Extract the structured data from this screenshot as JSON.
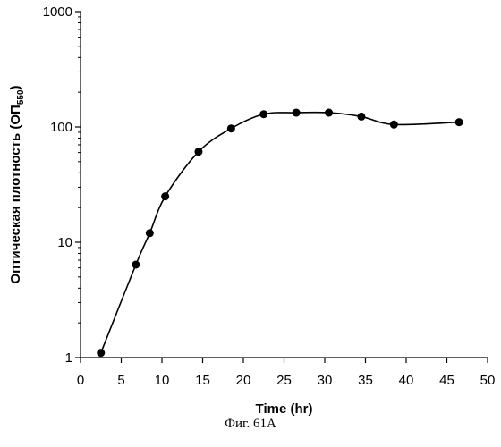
{
  "chart_data": {
    "type": "line",
    "xlabel": "Time (hr)",
    "ylabel": {
      "main": "Оптическая плотность (ОП",
      "sub": "550",
      "close": ")"
    },
    "y_scale": "log",
    "xlim": [
      0,
      50
    ],
    "ylim": [
      1,
      1000
    ],
    "x_ticks": [
      0,
      5,
      10,
      15,
      20,
      25,
      30,
      35,
      40,
      45,
      50
    ],
    "y_ticks": [
      1,
      10,
      100,
      1000
    ],
    "grid": false,
    "series": [
      {
        "x": [
          2.5,
          6.8,
          8.5,
          10.4,
          14.5,
          18.5,
          22.5,
          26.5,
          30.5,
          34.5,
          38.5,
          46.5
        ],
        "values": [
          1.1,
          6.4,
          12,
          25,
          61,
          97,
          129,
          133,
          133,
          123,
          105,
          110
        ]
      }
    ],
    "marker": "filled-circle",
    "line_color": "#000000"
  },
  "caption": "Фиг. 61A"
}
